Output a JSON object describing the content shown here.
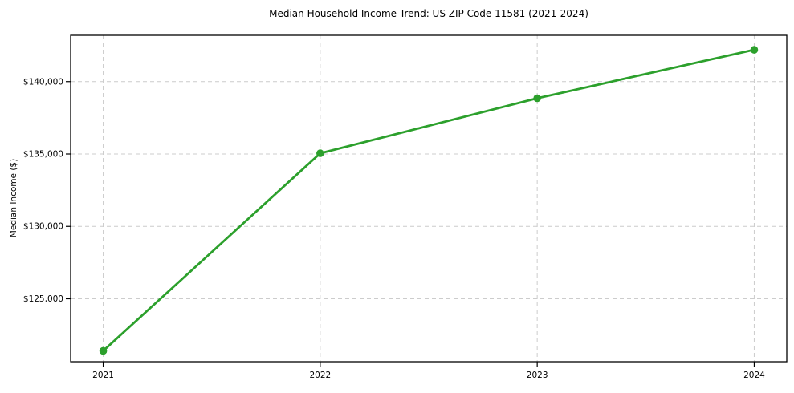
{
  "title": "Median Household Income Trend: US ZIP Code 11581 (2021-2024)",
  "chart_data": {
    "type": "line",
    "title": "Median Household Income Trend: US ZIP Code 11581 (2021-2024)",
    "xlabel": "",
    "ylabel": "Median Income ($)",
    "x": [
      2021,
      2022,
      2023,
      2024
    ],
    "series": [
      {
        "name": "Median Household Income",
        "values": [
          121400,
          135050,
          138850,
          142200
        ]
      }
    ],
    "xticks": [
      "2021",
      "2022",
      "2023",
      "2024"
    ],
    "xtick_values": [
      2021,
      2022,
      2023,
      2024
    ],
    "ytick_labels": [
      "$125,000",
      "$130,000",
      "$135,000",
      "$140,000"
    ],
    "ytick_values": [
      125000,
      130000,
      135000,
      140000
    ],
    "xlim": [
      2020.85,
      2024.15
    ],
    "ylim": [
      120650,
      143200
    ],
    "grid": true,
    "grid_style": "dashed",
    "legend": "none",
    "colors": {
      "line": "#2ca02c",
      "marker": "#2ca02c",
      "grid": "#cccccc",
      "axis": "#000000",
      "background": "#ffffff",
      "text": "#000000"
    }
  }
}
